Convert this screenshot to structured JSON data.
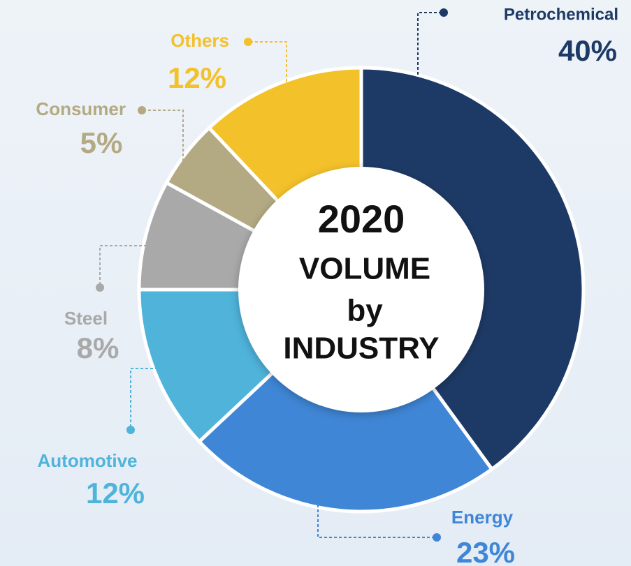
{
  "chart_data": {
    "type": "donut",
    "center_text": [
      "2020",
      "VOLUME",
      "by",
      "INDUSTRY"
    ],
    "categories": [
      "Petrochemical",
      "Energy",
      "Automotive",
      "Steel",
      "Consumer",
      "Others"
    ],
    "values": [
      40,
      23,
      12,
      8,
      5,
      12
    ],
    "value_labels": [
      "40%",
      "23%",
      "12%",
      "8%",
      "5%",
      "12%"
    ],
    "colors": [
      "#1d3a66",
      "#3f86d6",
      "#4fb3da",
      "#a9a9a9",
      "#b3aa83",
      "#f3c12a"
    ]
  }
}
